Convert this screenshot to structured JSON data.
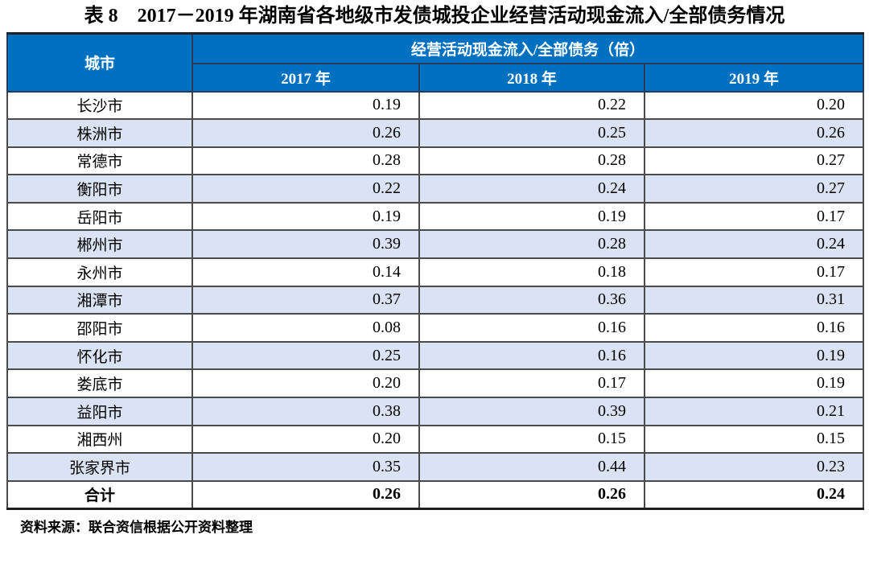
{
  "title": "表 8　2017－2019 年湖南省各地级市发债城投企业经营活动现金流入/全部债务情况",
  "table": {
    "col_city_header": "城市",
    "group_header": "经营活动现金流入/全部债务（倍）",
    "year_headers": [
      "2017 年",
      "2018 年",
      "2019 年"
    ],
    "rows": [
      {
        "city": "长沙市",
        "values": [
          "0.19",
          "0.22",
          "0.20"
        ],
        "is_total": false
      },
      {
        "city": "株洲市",
        "values": [
          "0.26",
          "0.25",
          "0.26"
        ],
        "is_total": false
      },
      {
        "city": "常德市",
        "values": [
          "0.28",
          "0.28",
          "0.27"
        ],
        "is_total": false
      },
      {
        "city": "衡阳市",
        "values": [
          "0.22",
          "0.24",
          "0.27"
        ],
        "is_total": false
      },
      {
        "city": "岳阳市",
        "values": [
          "0.19",
          "0.19",
          "0.17"
        ],
        "is_total": false
      },
      {
        "city": "郴州市",
        "values": [
          "0.39",
          "0.28",
          "0.24"
        ],
        "is_total": false
      },
      {
        "city": "永州市",
        "values": [
          "0.14",
          "0.18",
          "0.17"
        ],
        "is_total": false
      },
      {
        "city": "湘潭市",
        "values": [
          "0.37",
          "0.36",
          "0.31"
        ],
        "is_total": false
      },
      {
        "city": "邵阳市",
        "values": [
          "0.08",
          "0.16",
          "0.16"
        ],
        "is_total": false
      },
      {
        "city": "怀化市",
        "values": [
          "0.25",
          "0.16",
          "0.19"
        ],
        "is_total": false
      },
      {
        "city": "娄底市",
        "values": [
          "0.20",
          "0.17",
          "0.19"
        ],
        "is_total": false
      },
      {
        "city": "益阳市",
        "values": [
          "0.38",
          "0.39",
          "0.21"
        ],
        "is_total": false
      },
      {
        "city": "湘西州",
        "values": [
          "0.20",
          "0.15",
          "0.15"
        ],
        "is_total": false
      },
      {
        "city": "张家界市",
        "values": [
          "0.35",
          "0.44",
          "0.23"
        ],
        "is_total": false
      },
      {
        "city": "合计",
        "values": [
          "0.26",
          "0.26",
          "0.24"
        ],
        "is_total": true
      }
    ]
  },
  "footer": "资料来源：联合资信根据公开资料整理",
  "colors": {
    "header_bg": "#0070C0",
    "header_text": "#ffffff",
    "stripe_bg": "#DAE3F3",
    "grid_line": "#4a4a4a",
    "outer_border": "#1f1f1f"
  }
}
